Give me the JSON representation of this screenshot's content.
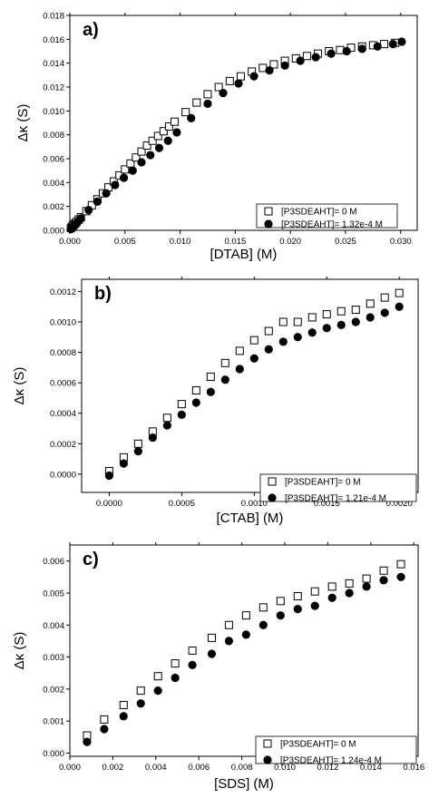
{
  "chart_data": [
    {
      "type": "scatter",
      "panel_label": "a)",
      "xlabel": "[DTAB] (M)",
      "ylabel": "Δκ (S)",
      "xlim": [
        0,
        0.0315
      ],
      "ylim": [
        0,
        0.018
      ],
      "xticks": [
        0,
        0.005,
        0.01,
        0.015,
        0.02,
        0.025,
        0.03
      ],
      "xtick_labels": [
        "0.000",
        "0.005",
        "0.010",
        "0.015",
        "0.020",
        "0.025",
        "0.030"
      ],
      "yticks": [
        0,
        0.002,
        0.004,
        0.006,
        0.008,
        0.01,
        0.012,
        0.014,
        0.016,
        0.018
      ],
      "ytick_labels": [
        "0.000",
        "0.002",
        "0.004",
        "0.006",
        "0.008",
        "0.010",
        "0.012",
        "0.014",
        "0.016",
        "0.018"
      ],
      "legend_position": "bottom-right",
      "grid": false,
      "series": [
        {
          "name": "[P3SDEAHT]= 0 M",
          "marker": "open-square",
          "x": [
            0.0001,
            0.0002,
            0.0003,
            0.0004,
            0.0005,
            0.0006,
            0.0008,
            0.001,
            0.0015,
            0.002,
            0.0025,
            0.003,
            0.0035,
            0.004,
            0.0045,
            0.005,
            0.0055,
            0.006,
            0.0065,
            0.007,
            0.0075,
            0.008,
            0.0085,
            0.009,
            0.0095,
            0.0105,
            0.0115,
            0.0125,
            0.0135,
            0.0145,
            0.0155,
            0.0165,
            0.0175,
            0.0185,
            0.0195,
            0.0205,
            0.0215,
            0.0225,
            0.0235,
            0.0245,
            0.0255,
            0.0265,
            0.0275,
            0.0285,
            0.0295
          ],
          "y": [
            0.0002,
            0.0003,
            0.0004,
            0.0005,
            0.0006,
            0.0007,
            0.0009,
            0.0011,
            0.0016,
            0.0021,
            0.0026,
            0.0031,
            0.0036,
            0.0041,
            0.0046,
            0.0051,
            0.0056,
            0.0061,
            0.0066,
            0.0071,
            0.0075,
            0.0079,
            0.0083,
            0.0087,
            0.0091,
            0.0099,
            0.0107,
            0.0114,
            0.012,
            0.0125,
            0.0129,
            0.0133,
            0.0136,
            0.0139,
            0.0142,
            0.0144,
            0.0146,
            0.0148,
            0.015,
            0.0151,
            0.0153,
            0.0154,
            0.0155,
            0.0156,
            0.0157
          ]
        },
        {
          "name": "[P3SDEAHT]= 1.32e-4 M",
          "marker": "filled-circle",
          "x": [
            0.0001,
            0.0002,
            0.0003,
            0.0004,
            0.0005,
            0.0006,
            0.0008,
            0.001,
            0.0017,
            0.0025,
            0.0033,
            0.0041,
            0.0049,
            0.0057,
            0.0065,
            0.0073,
            0.0081,
            0.0089,
            0.0097,
            0.011,
            0.0125,
            0.0139,
            0.0153,
            0.0167,
            0.0181,
            0.0195,
            0.0209,
            0.0223,
            0.0237,
            0.0251,
            0.0265,
            0.0279,
            0.0293,
            0.0301
          ],
          "y": [
            0.0001,
            0.0002,
            0.0003,
            0.0004,
            0.0005,
            0.0006,
            0.0008,
            0.001,
            0.0017,
            0.0024,
            0.0031,
            0.0038,
            0.0044,
            0.005,
            0.0057,
            0.0063,
            0.0069,
            0.0075,
            0.0082,
            0.0094,
            0.0106,
            0.0115,
            0.0123,
            0.0129,
            0.0134,
            0.0138,
            0.0142,
            0.0145,
            0.0148,
            0.015,
            0.0152,
            0.0154,
            0.0156,
            0.0158
          ]
        }
      ]
    },
    {
      "type": "scatter",
      "panel_label": "b)",
      "xlabel": "[CTAB] (M)",
      "ylabel": "Δκ (S)",
      "xlim": [
        -0.00019,
        0.00213
      ],
      "ylim": [
        -0.00012,
        0.00128
      ],
      "xticks": [
        0,
        0.0005,
        0.001,
        0.0015,
        0.002
      ],
      "xtick_labels": [
        "0.0000",
        "0.0005",
        "0.0010",
        "0.0015",
        "0.0020"
      ],
      "yticks": [
        0,
        0.0002,
        0.0004,
        0.0006,
        0.0008,
        0.001,
        0.0012
      ],
      "ytick_labels": [
        "0.0000",
        "0.0002",
        "0.0004",
        "0.0006",
        "0.0008",
        "0.0010",
        "0.0012"
      ],
      "legend_position": "bottom-right",
      "grid": false,
      "series": [
        {
          "name": "[P3SDEAHT]= 0 M",
          "marker": "open-square",
          "x": [
            0.0,
            0.0001,
            0.0002,
            0.0003,
            0.0004,
            0.0005,
            0.0006,
            0.0007,
            0.0008,
            0.0009,
            0.001,
            0.0011,
            0.0012,
            0.0013,
            0.0014,
            0.0015,
            0.0016,
            0.0017,
            0.0018,
            0.0019,
            0.002
          ],
          "y": [
            2e-05,
            0.00011,
            0.0002,
            0.00028,
            0.00037,
            0.00046,
            0.00055,
            0.00064,
            0.00073,
            0.00081,
            0.00088,
            0.00094,
            0.001,
            0.001,
            0.00103,
            0.00105,
            0.00107,
            0.00108,
            0.00112,
            0.00116,
            0.00119
          ]
        },
        {
          "name": "[P3SDEAHT]= 1.21e-4 M",
          "marker": "filled-circle",
          "x": [
            0.0,
            0.0001,
            0.0002,
            0.0003,
            0.0004,
            0.0005,
            0.0006,
            0.0007,
            0.0008,
            0.0009,
            0.001,
            0.0011,
            0.0012,
            0.0013,
            0.0014,
            0.0015,
            0.0016,
            0.0017,
            0.0018,
            0.0019,
            0.002
          ],
          "y": [
            -1e-05,
            7e-05,
            0.00015,
            0.00024,
            0.00032,
            0.00039,
            0.00047,
            0.00054,
            0.00062,
            0.00069,
            0.00076,
            0.00082,
            0.00087,
            0.0009,
            0.00093,
            0.00096,
            0.00098,
            0.001,
            0.00103,
            0.00106,
            0.0011
          ]
        }
      ]
    },
    {
      "type": "scatter",
      "panel_label": "c)",
      "xlabel": "[SDS] (M)",
      "ylabel": "Δκ (S)",
      "xlim": [
        0,
        0.0162
      ],
      "ylim": [
        -0.0001,
        0.0065
      ],
      "xticks": [
        0,
        0.002,
        0.004,
        0.006,
        0.008,
        0.01,
        0.012,
        0.014,
        0.016
      ],
      "xtick_labels": [
        "0.000",
        "0.002",
        "0.004",
        "0.006",
        "0.008",
        "0.010",
        "0.012",
        "0.014",
        "0.016"
      ],
      "yticks": [
        0,
        0.001,
        0.002,
        0.003,
        0.004,
        0.005,
        0.006
      ],
      "ytick_labels": [
        "0.000",
        "0.001",
        "0.002",
        "0.003",
        "0.004",
        "0.005",
        "0.006"
      ],
      "legend_position": "bottom-right",
      "grid": false,
      "series": [
        {
          "name": "[P3SDEAHT]= 0 M",
          "marker": "open-square",
          "x": [
            0.0008,
            0.0016,
            0.0025,
            0.0033,
            0.0041,
            0.0049,
            0.0057,
            0.0066,
            0.0074,
            0.0082,
            0.009,
            0.0098,
            0.0106,
            0.0114,
            0.0122,
            0.013,
            0.0138,
            0.0146,
            0.0154
          ],
          "y": [
            0.00055,
            0.00105,
            0.0015,
            0.00195,
            0.0024,
            0.0028,
            0.0032,
            0.0036,
            0.004,
            0.0043,
            0.00455,
            0.00475,
            0.0049,
            0.00505,
            0.0052,
            0.0053,
            0.00545,
            0.0057,
            0.0059
          ]
        },
        {
          "name": "[P3SDEAHT]= 1.24e-4 M",
          "marker": "filled-circle",
          "x": [
            0.0008,
            0.0016,
            0.0025,
            0.0033,
            0.0041,
            0.0049,
            0.0057,
            0.0066,
            0.0074,
            0.0082,
            0.009,
            0.0098,
            0.0106,
            0.0114,
            0.0122,
            0.013,
            0.0138,
            0.0146,
            0.0154
          ],
          "y": [
            0.00035,
            0.00075,
            0.00115,
            0.00155,
            0.00195,
            0.00235,
            0.00275,
            0.0031,
            0.0035,
            0.0037,
            0.004,
            0.0043,
            0.0045,
            0.0046,
            0.00485,
            0.005,
            0.0052,
            0.0054,
            0.0055
          ]
        }
      ]
    }
  ]
}
